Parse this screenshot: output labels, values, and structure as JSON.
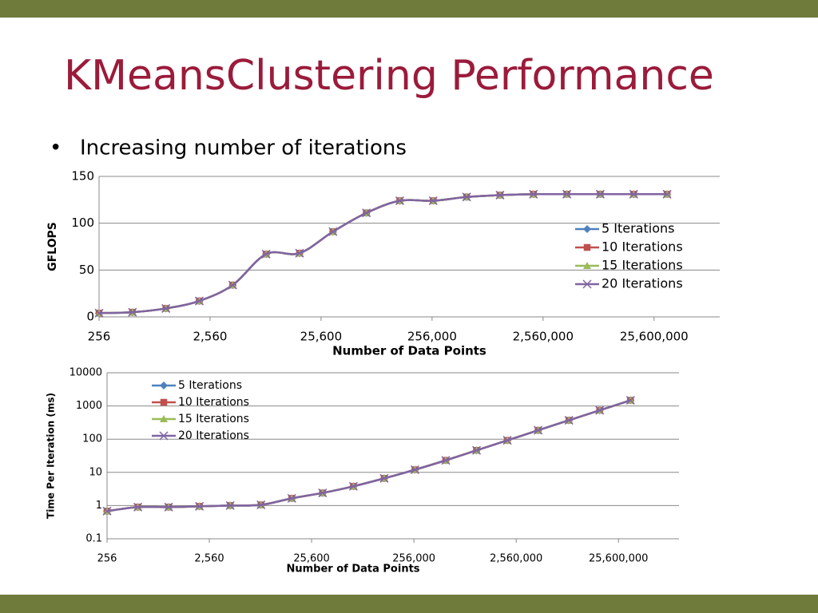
{
  "slide": {
    "title": "KMeansClustering Performance",
    "bullet": "Increasing number of iterations"
  },
  "chart_data": [
    {
      "type": "line",
      "x_label": "Number of Data Points",
      "y_label": "GFLOPS",
      "xlog": true,
      "ylog": false,
      "grid": true,
      "legend": "right",
      "x": [
        256,
        512,
        1024,
        2048,
        4096,
        8192,
        16384,
        32768,
        65536,
        131072,
        262144,
        524288,
        1048576,
        2097152,
        4194304,
        8388608,
        16777216,
        33554432
      ],
      "xlim": [
        256,
        100000000
      ],
      "xticks": [
        256,
        {
          "value": 2560,
          "label": "2,560"
        },
        {
          "value": 25600,
          "label": "25,600"
        },
        {
          "value": 256000,
          "label": "256,000"
        },
        {
          "value": 2560000,
          "label": "2,560,000"
        },
        {
          "value": 25600000,
          "label": "25,600,000"
        }
      ],
      "ylim": [
        0,
        150
      ],
      "yticks": [
        0,
        50,
        100,
        150
      ],
      "series": [
        {
          "name": "5 Iterations",
          "color": "#4f81bd",
          "marker": "diamond",
          "values": [
            4,
            5,
            9,
            17,
            34,
            67,
            68,
            91,
            111,
            124,
            124,
            128,
            130,
            131,
            131,
            131,
            131,
            131
          ]
        },
        {
          "name": "10 Iterations",
          "color": "#c0504d",
          "marker": "square",
          "values": [
            4,
            5,
            9,
            17,
            34,
            67,
            68,
            91,
            111,
            124,
            124,
            128,
            130,
            131,
            131,
            131,
            131,
            131
          ]
        },
        {
          "name": "15 Iterations",
          "color": "#9bbb59",
          "marker": "triangle",
          "values": [
            4,
            5,
            9,
            17,
            34,
            67,
            68,
            91,
            111,
            124,
            124,
            128,
            130,
            131,
            131,
            131,
            131,
            131
          ]
        },
        {
          "name": "20 Iterations",
          "color": "#8064a2",
          "marker": "x",
          "values": [
            4,
            5,
            9,
            17,
            34,
            67,
            68,
            91,
            111,
            124,
            124,
            128,
            130,
            131,
            131,
            131,
            131,
            131
          ]
        }
      ]
    },
    {
      "type": "line",
      "x_label": "Number of Data Points",
      "y_label": "Time Per Iteration (ms)",
      "xlog": true,
      "ylog": true,
      "grid": true,
      "legend": "upper left",
      "x": [
        256,
        512,
        1024,
        2048,
        4096,
        8192,
        16384,
        32768,
        65536,
        131072,
        262144,
        524288,
        1048576,
        2097152,
        4194304,
        8388608,
        16777216,
        33554432
      ],
      "xlim": [
        256,
        100000000
      ],
      "xticks": [
        256,
        {
          "value": 2560,
          "label": "2,560"
        },
        {
          "value": 25600,
          "label": "25,600"
        },
        {
          "value": 256000,
          "label": "256,000"
        },
        {
          "value": 2560000,
          "label": "2,560,000"
        },
        {
          "value": 25600000,
          "label": "25,600,000"
        }
      ],
      "ylim": [
        0.1,
        10000
      ],
      "yticks": [
        0.1,
        1,
        10,
        100,
        1000,
        10000
      ],
      "series": [
        {
          "name": "5 Iterations",
          "color": "#4f81bd",
          "marker": "diamond",
          "values": [
            0.68,
            0.9,
            0.9,
            0.95,
            1.0,
            1.05,
            1.65,
            2.4,
            3.8,
            6.6,
            12,
            23,
            46,
            92,
            185,
            370,
            740,
            1480
          ]
        },
        {
          "name": "10 Iterations",
          "color": "#c0504d",
          "marker": "square",
          "values": [
            0.68,
            0.9,
            0.9,
            0.95,
            1.0,
            1.05,
            1.65,
            2.4,
            3.8,
            6.6,
            12,
            23,
            46,
            92,
            185,
            370,
            740,
            1480
          ]
        },
        {
          "name": "15 Iterations",
          "color": "#9bbb59",
          "marker": "triangle",
          "values": [
            0.68,
            0.9,
            0.9,
            0.95,
            1.0,
            1.05,
            1.65,
            2.4,
            3.8,
            6.6,
            12,
            23,
            46,
            92,
            185,
            370,
            740,
            1480
          ]
        },
        {
          "name": "20 Iterations",
          "color": "#8064a2",
          "marker": "x",
          "values": [
            0.68,
            0.9,
            0.9,
            0.95,
            1.0,
            1.05,
            1.65,
            2.4,
            3.8,
            6.6,
            12,
            23,
            46,
            92,
            185,
            370,
            740,
            1480
          ]
        }
      ]
    }
  ]
}
